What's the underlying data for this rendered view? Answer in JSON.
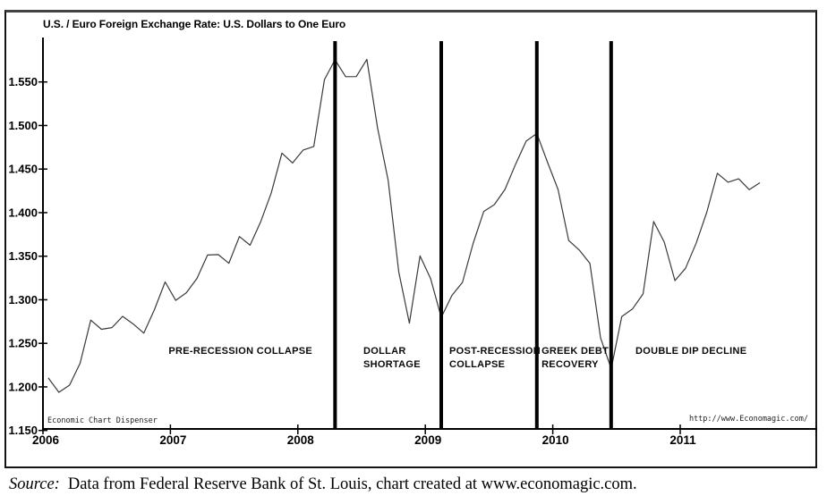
{
  "chart_data": {
    "type": "line",
    "title": "U.S. / Euro Foreign Exchange Rate: U.S. Dollars to One Euro",
    "series": [
      {
        "name": "U.S. Dollars to One Euro (monthly)",
        "frequency": "monthly",
        "start_year": 2006,
        "start_month": 1,
        "values": [
          1.2103,
          1.1938,
          1.202,
          1.2271,
          1.2767,
          1.2661,
          1.2681,
          1.281,
          1.2722,
          1.2617,
          1.2888,
          1.3205,
          1.2993,
          1.308,
          1.3246,
          1.3513,
          1.3518,
          1.3419,
          1.3726,
          1.3626,
          1.3896,
          1.4227,
          1.4684,
          1.457,
          1.4718,
          1.4759,
          1.5527,
          1.5754,
          1.556,
          1.5562,
          1.5759,
          1.4975,
          1.437,
          1.3322,
          1.2732,
          1.3503,
          1.3244,
          1.2797,
          1.305,
          1.3199,
          1.3646,
          1.4014,
          1.4092,
          1.4266,
          1.4556,
          1.4821,
          1.4908,
          1.4579,
          1.4266,
          1.368,
          1.357,
          1.3417,
          1.2563,
          1.2209,
          1.2808,
          1.2894,
          1.3067,
          1.3898,
          1.3661,
          1.322,
          1.336,
          1.3649,
          1.4005,
          1.4452,
          1.4349,
          1.4388,
          1.4264,
          1.4343
        ]
      }
    ],
    "ylim": [
      1.15,
      1.601
    ],
    "yticks": [
      1.15,
      1.2,
      1.25,
      1.3,
      1.35,
      1.4,
      1.45,
      1.5,
      1.55
    ],
    "xticks": [
      2006,
      2007,
      2008,
      2009,
      2010,
      2011
    ],
    "grid": false,
    "legend": "none",
    "dividers": [
      2008.292,
      2009.125,
      2009.875,
      2010.458
    ],
    "annotations": [
      {
        "lines": [
          "PRE-RECESSION COLLAPSE"
        ],
        "x": 2007.55,
        "y": 1.242,
        "align": "center"
      },
      {
        "lines": [
          "DOLLAR",
          "SHORTAGE"
        ],
        "x": 2008.514,
        "y": 1.242,
        "align": "left"
      },
      {
        "lines": [
          "POST-RECESSION",
          "COLLAPSE"
        ],
        "x": 2009.188,
        "y": 1.242,
        "align": "left"
      },
      {
        "lines": [
          "GREEK DEBT",
          "RECOVERY"
        ],
        "x": 2009.912,
        "y": 1.242,
        "align": "left"
      },
      {
        "lines": [
          "DOUBLE DIP DECLINE"
        ],
        "x": 2010.649,
        "y": 1.242,
        "align": "left"
      }
    ],
    "watermark_left": "Economic Chart Dispenser",
    "watermark_right": "http://www.Economagic.com/",
    "line_color": "#3a3a3a",
    "divider_color": "#000000",
    "axis_color": "#000000"
  },
  "footer": {
    "source_label": "Source:",
    "source_text": "Data from Federal Reserve Bank of St. Louis, chart created at www.economagic.com."
  }
}
